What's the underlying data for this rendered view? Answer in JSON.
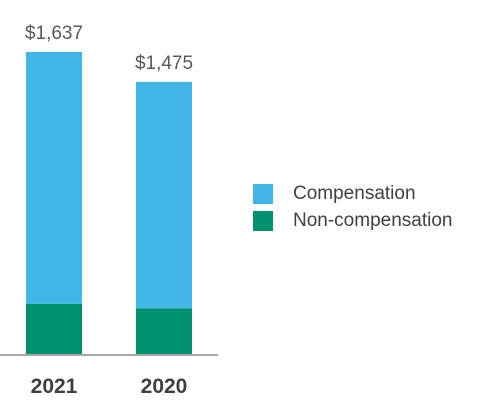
{
  "chart_data": {
    "type": "bar",
    "stacked": true,
    "categories": [
      "2021",
      "2020"
    ],
    "series": [
      {
        "name": "Non-compensation",
        "values": [
          272,
          247
        ],
        "color": "#00916e"
      },
      {
        "name": "Compensation",
        "values": [
          1365,
          1228
        ],
        "color": "#41b6e6"
      }
    ],
    "totals": [
      1637,
      1475
    ],
    "total_labels": [
      "$1,637",
      "$1,475"
    ],
    "legend_order": [
      "Compensation",
      "Non-compensation"
    ],
    "legend_position": "right",
    "ylim": [
      0,
      1637
    ],
    "axis_color": "#a6a6a6",
    "grid": false
  }
}
